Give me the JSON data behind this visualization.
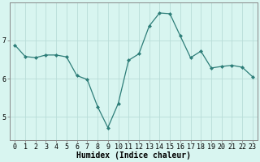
{
  "xlabel": "Humidex (Indice chaleur)",
  "x_values": [
    0,
    1,
    2,
    3,
    4,
    5,
    6,
    7,
    8,
    9,
    10,
    11,
    12,
    13,
    14,
    15,
    16,
    17,
    18,
    19,
    20,
    21,
    22,
    23
  ],
  "y_values": [
    6.88,
    6.58,
    6.55,
    6.62,
    6.62,
    6.57,
    6.08,
    5.98,
    5.27,
    4.72,
    5.35,
    6.48,
    6.65,
    7.38,
    7.72,
    7.7,
    7.12,
    6.55,
    6.72,
    6.28,
    6.32,
    6.35,
    6.3,
    6.05
  ],
  "line_color": "#2d7d78",
  "marker": "D",
  "marker_size": 2.0,
  "bg_color": "#d8f5f0",
  "grid_color": "#b8dcd8",
  "axis_color": "#888888",
  "yticks": [
    5,
    6,
    7
  ],
  "ylim": [
    4.4,
    8.0
  ],
  "xlim": [
    -0.5,
    23.5
  ],
  "tick_label_fontsize": 6.0,
  "xlabel_fontsize": 7.0,
  "linewidth": 0.9
}
